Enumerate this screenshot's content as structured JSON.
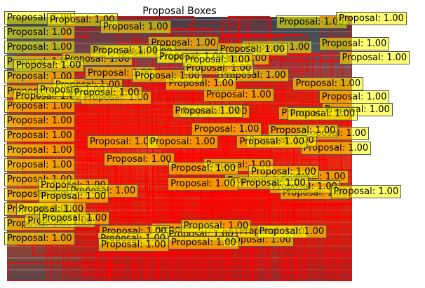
{
  "figure": {
    "title": "Proposal Boxes",
    "label_text": "Proposal: 1.00",
    "colors": {
      "box_edge": "#ff0000",
      "label_bg": "#ffff00",
      "label_edge": "#555555"
    }
  }
}
